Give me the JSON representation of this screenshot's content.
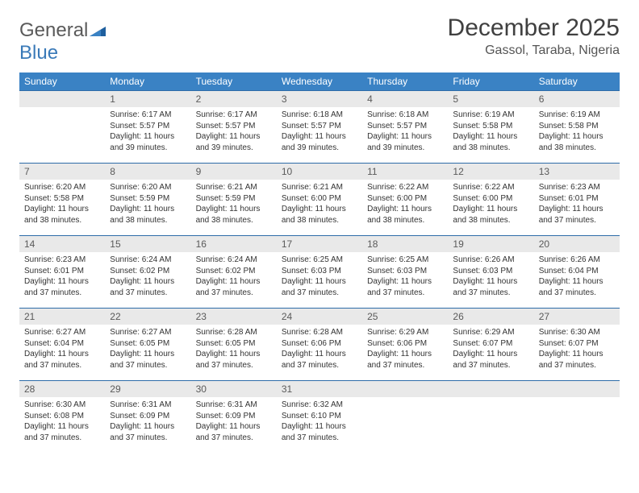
{
  "logo": {
    "word1": "General",
    "word2": "Blue"
  },
  "title": "December 2025",
  "location": "Gassol, Taraba, Nigeria",
  "colors": {
    "header_bg": "#3a82c4",
    "header_text": "#ffffff",
    "row_border": "#2e6ca8",
    "daynum_bg": "#e9e9e9",
    "daynum_text": "#5a5a5a",
    "body_text": "#333333",
    "logo_gray": "#5a5a5a",
    "logo_blue": "#3a7ab8",
    "page_bg": "#ffffff"
  },
  "typography": {
    "title_fontsize": 30,
    "location_fontsize": 16,
    "header_fontsize": 12,
    "daynum_fontsize": 12,
    "body_fontsize": 10
  },
  "weekdays": [
    "Sunday",
    "Monday",
    "Tuesday",
    "Wednesday",
    "Thursday",
    "Friday",
    "Saturday"
  ],
  "weeks": [
    [
      null,
      {
        "n": 1,
        "sr": "6:17 AM",
        "ss": "5:57 PM",
        "dl": "11 hours and 39 minutes."
      },
      {
        "n": 2,
        "sr": "6:17 AM",
        "ss": "5:57 PM",
        "dl": "11 hours and 39 minutes."
      },
      {
        "n": 3,
        "sr": "6:18 AM",
        "ss": "5:57 PM",
        "dl": "11 hours and 39 minutes."
      },
      {
        "n": 4,
        "sr": "6:18 AM",
        "ss": "5:57 PM",
        "dl": "11 hours and 39 minutes."
      },
      {
        "n": 5,
        "sr": "6:19 AM",
        "ss": "5:58 PM",
        "dl": "11 hours and 38 minutes."
      },
      {
        "n": 6,
        "sr": "6:19 AM",
        "ss": "5:58 PM",
        "dl": "11 hours and 38 minutes."
      }
    ],
    [
      {
        "n": 7,
        "sr": "6:20 AM",
        "ss": "5:58 PM",
        "dl": "11 hours and 38 minutes."
      },
      {
        "n": 8,
        "sr": "6:20 AM",
        "ss": "5:59 PM",
        "dl": "11 hours and 38 minutes."
      },
      {
        "n": 9,
        "sr": "6:21 AM",
        "ss": "5:59 PM",
        "dl": "11 hours and 38 minutes."
      },
      {
        "n": 10,
        "sr": "6:21 AM",
        "ss": "6:00 PM",
        "dl": "11 hours and 38 minutes."
      },
      {
        "n": 11,
        "sr": "6:22 AM",
        "ss": "6:00 PM",
        "dl": "11 hours and 38 minutes."
      },
      {
        "n": 12,
        "sr": "6:22 AM",
        "ss": "6:00 PM",
        "dl": "11 hours and 38 minutes."
      },
      {
        "n": 13,
        "sr": "6:23 AM",
        "ss": "6:01 PM",
        "dl": "11 hours and 37 minutes."
      }
    ],
    [
      {
        "n": 14,
        "sr": "6:23 AM",
        "ss": "6:01 PM",
        "dl": "11 hours and 37 minutes."
      },
      {
        "n": 15,
        "sr": "6:24 AM",
        "ss": "6:02 PM",
        "dl": "11 hours and 37 minutes."
      },
      {
        "n": 16,
        "sr": "6:24 AM",
        "ss": "6:02 PM",
        "dl": "11 hours and 37 minutes."
      },
      {
        "n": 17,
        "sr": "6:25 AM",
        "ss": "6:03 PM",
        "dl": "11 hours and 37 minutes."
      },
      {
        "n": 18,
        "sr": "6:25 AM",
        "ss": "6:03 PM",
        "dl": "11 hours and 37 minutes."
      },
      {
        "n": 19,
        "sr": "6:26 AM",
        "ss": "6:03 PM",
        "dl": "11 hours and 37 minutes."
      },
      {
        "n": 20,
        "sr": "6:26 AM",
        "ss": "6:04 PM",
        "dl": "11 hours and 37 minutes."
      }
    ],
    [
      {
        "n": 21,
        "sr": "6:27 AM",
        "ss": "6:04 PM",
        "dl": "11 hours and 37 minutes."
      },
      {
        "n": 22,
        "sr": "6:27 AM",
        "ss": "6:05 PM",
        "dl": "11 hours and 37 minutes."
      },
      {
        "n": 23,
        "sr": "6:28 AM",
        "ss": "6:05 PM",
        "dl": "11 hours and 37 minutes."
      },
      {
        "n": 24,
        "sr": "6:28 AM",
        "ss": "6:06 PM",
        "dl": "11 hours and 37 minutes."
      },
      {
        "n": 25,
        "sr": "6:29 AM",
        "ss": "6:06 PM",
        "dl": "11 hours and 37 minutes."
      },
      {
        "n": 26,
        "sr": "6:29 AM",
        "ss": "6:07 PM",
        "dl": "11 hours and 37 minutes."
      },
      {
        "n": 27,
        "sr": "6:30 AM",
        "ss": "6:07 PM",
        "dl": "11 hours and 37 minutes."
      }
    ],
    [
      {
        "n": 28,
        "sr": "6:30 AM",
        "ss": "6:08 PM",
        "dl": "11 hours and 37 minutes."
      },
      {
        "n": 29,
        "sr": "6:31 AM",
        "ss": "6:09 PM",
        "dl": "11 hours and 37 minutes."
      },
      {
        "n": 30,
        "sr": "6:31 AM",
        "ss": "6:09 PM",
        "dl": "11 hours and 37 minutes."
      },
      {
        "n": 31,
        "sr": "6:32 AM",
        "ss": "6:10 PM",
        "dl": "11 hours and 37 minutes."
      },
      null,
      null,
      null
    ]
  ],
  "labels": {
    "sunrise": "Sunrise:",
    "sunset": "Sunset:",
    "daylight": "Daylight:"
  }
}
